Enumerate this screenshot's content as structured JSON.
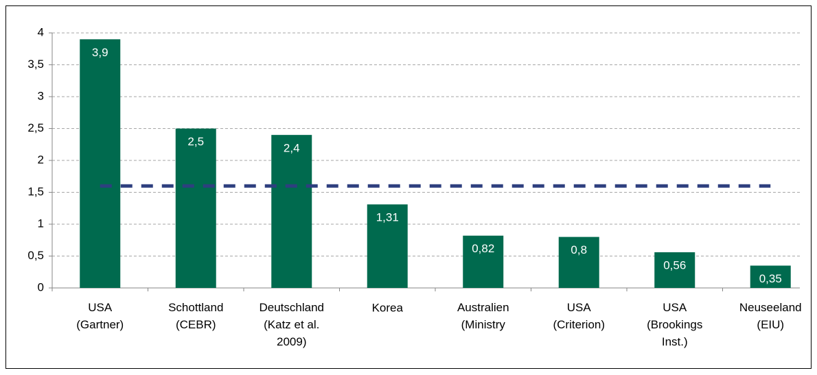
{
  "chart_data": {
    "type": "bar",
    "categories": [
      "USA\n(Gartner)",
      "Schottland\n(CEBR)",
      "Deutschland\n(Katz et al.\n2009)",
      "Korea",
      "Australien\n(Ministry",
      "USA\n(Criterion)",
      "USA\n(Brookings\nInst.)",
      "Neuseeland\n(EIU)"
    ],
    "values": [
      3.9,
      2.5,
      2.4,
      1.31,
      0.82,
      0.8,
      0.56,
      0.35
    ],
    "value_labels": [
      "3,9",
      "2,5",
      "2,4",
      "1,31",
      "0,82",
      "0,8",
      "0,56",
      "0,35"
    ],
    "color": "#006a4e",
    "ylim": [
      0,
      4
    ],
    "yticks": [
      0,
      {
        "value": 0.5,
        "label": "0,5"
      },
      1,
      {
        "value": 1.5,
        "label": "1,5"
      },
      2,
      {
        "value": 2.5,
        "label": "2,5"
      },
      3,
      {
        "value": 3.5,
        "label": "3,5"
      },
      4
    ],
    "grid": true,
    "reference_line": {
      "value": 1.6,
      "color": "#2e3f7f"
    }
  }
}
